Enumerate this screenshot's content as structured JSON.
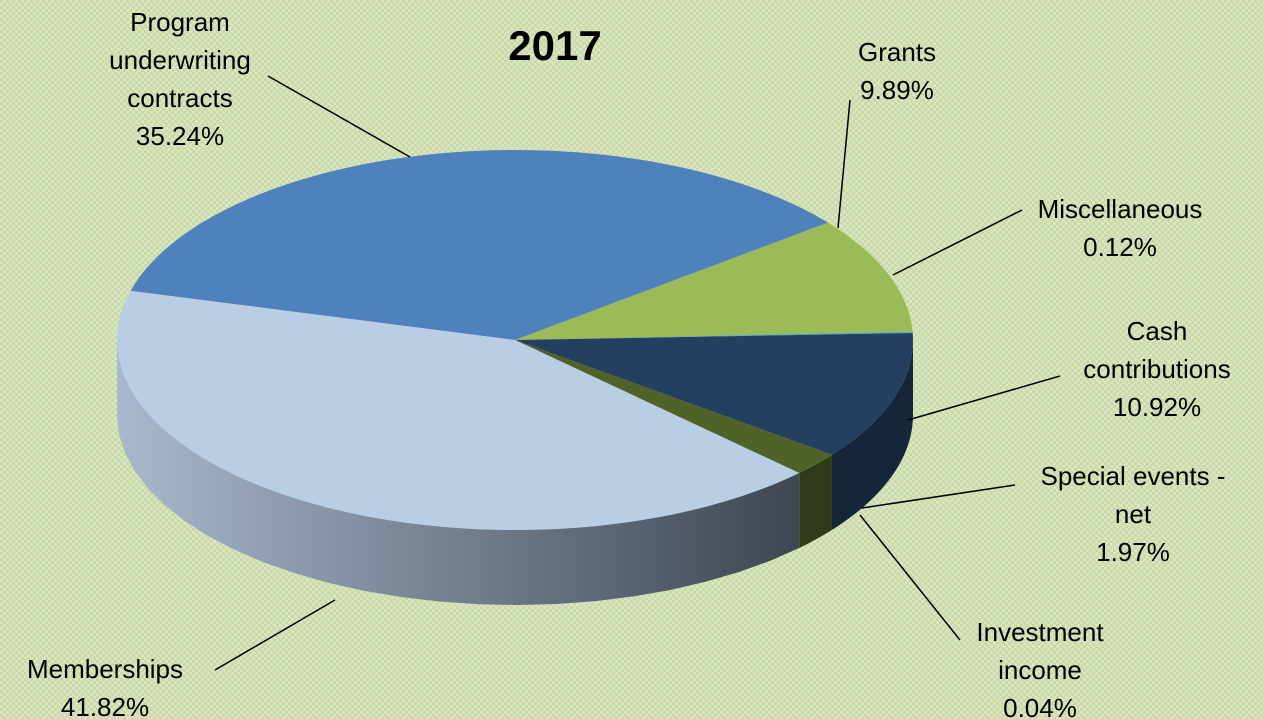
{
  "chart_data": {
    "type": "pie",
    "title": "2017",
    "categories": [
      "Program underwriting contracts",
      "Grants",
      "Miscellaneous",
      "Cash contributions",
      "Special events - net",
      "Investment income",
      "Memberships"
    ],
    "values": [
      35.24,
      9.89,
      0.12,
      10.92,
      1.97,
      0.04,
      41.82
    ],
    "value_labels": [
      "35.24%",
      "9.89%",
      "0.12%",
      "10.92%",
      "1.97%",
      "0.04%",
      "41.82%"
    ],
    "colors": [
      "#4f81bd",
      "#9bbb59",
      "#4bacc6",
      "#243f60",
      "#4f6228",
      "#3b4a1e",
      "#b9cde5"
    ]
  }
}
